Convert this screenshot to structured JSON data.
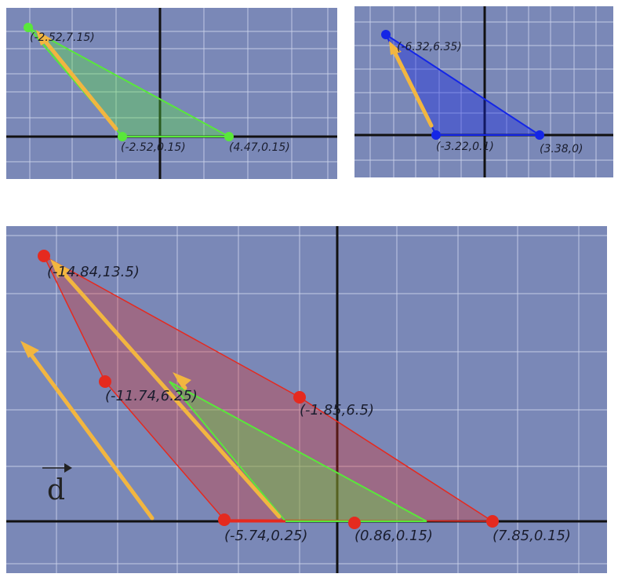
{
  "colors": {
    "background": "#7a88b7",
    "grid": "#c9d1ea",
    "axis": "#111111",
    "green": "#59e83a",
    "blue": "#1426e6",
    "red": "#e52a1f",
    "arrow": "#f2b640"
  },
  "panels": {
    "green": {
      "labels": {
        "apex": "(-2.52,7.15)",
        "left": "(-2.52,0.15)",
        "right": "(4.47,0.15)"
      }
    },
    "blue": {
      "labels": {
        "apex": "(-6.32,6.35)",
        "left": "(-3.22,0.1)",
        "right": "(3.38,0)"
      }
    },
    "main": {
      "labels": {
        "apex": "(-14.84,13.5)",
        "mid_left": "(-11.74,6.25)",
        "mid_right": "(-1.85,6.5)",
        "base_left": "(-5.74,0.25)",
        "base_mid": "(0.86,0.15)",
        "base_right": "(7.85,0.15)"
      },
      "vector_label": "d"
    }
  }
}
